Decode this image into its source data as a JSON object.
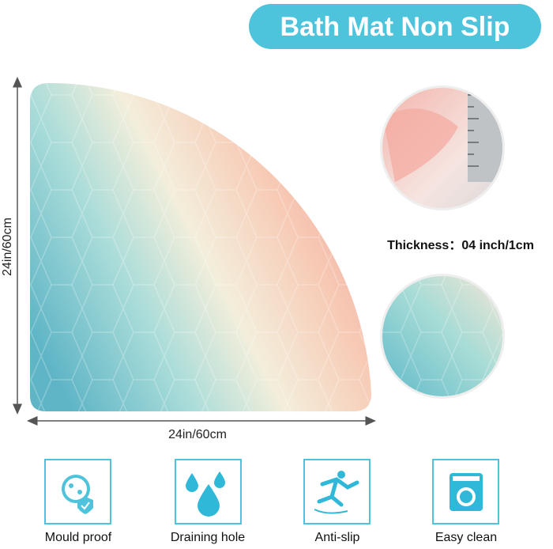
{
  "header": {
    "title": "Bath Mat Non Slip"
  },
  "dimensions": {
    "height": "24in/60cm",
    "width": "24in/60cm"
  },
  "thickness": "Thickness：04 inch/1cm",
  "features": [
    {
      "label": "Mould proof"
    },
    {
      "label": "Draining hole"
    },
    {
      "label": "Anti-slip"
    },
    {
      "label": "Easy clean"
    }
  ]
}
